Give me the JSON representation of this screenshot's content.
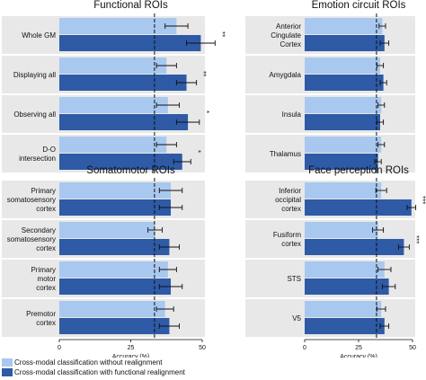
{
  "colors": {
    "without": "#a9c8ef",
    "with": "#2e5aa6",
    "panel_bg": "#e8e8e8"
  },
  "legend": [
    {
      "label": "Cross-modal classification without realignment",
      "color": "#a9c8ef"
    },
    {
      "label": "Cross-modal classification with functional realignment",
      "color": "#2e5aa6"
    }
  ],
  "chart_data": [
    {
      "type": "bar",
      "orientation": "horizontal",
      "title": "Functional ROIs",
      "xlabel": "Accuracy (%)",
      "xlim": [
        0,
        50
      ],
      "xticks": [
        0,
        25,
        50
      ],
      "chance": 33.3,
      "series": [
        {
          "name": "Cross-modal classification without realignment",
          "values": [
            41,
            37.5,
            38,
            37.5
          ],
          "errors": [
            4,
            3.5,
            4,
            3.5
          ]
        },
        {
          "name": "Cross-modal classification with functional realignment",
          "values": [
            49.5,
            44.5,
            45,
            43
          ],
          "errors": [
            5,
            3.5,
            4,
            3
          ]
        }
      ],
      "categories": [
        {
          "label": [
            "Whole GM"
          ],
          "sig": "**"
        },
        {
          "label": [
            "Displaying all"
          ],
          "sig": "**"
        },
        {
          "label": [
            "Observing all"
          ],
          "sig": "*"
        },
        {
          "label": [
            "D-O",
            "intersection"
          ],
          "sig": "*"
        }
      ]
    },
    {
      "type": "bar",
      "orientation": "horizontal",
      "title": "Emotion circuit ROIs",
      "xlabel": "Accuracy (%)",
      "xlim": [
        0,
        50
      ],
      "xticks": [
        0,
        25,
        50
      ],
      "chance": 33.3,
      "series": [
        {
          "name": "Cross-modal classification without realignment",
          "values": [
            36,
            35,
            35.5,
            35.5
          ],
          "errors": [
            1.5,
            1.5,
            1.5,
            1.5
          ]
        },
        {
          "name": "Cross-modal classification with functional realignment",
          "values": [
            37,
            36.5,
            35,
            34
          ],
          "errors": [
            2,
            1.5,
            1.5,
            1.5
          ]
        }
      ],
      "categories": [
        {
          "label": [
            "Anterior",
            "Cingulate",
            "Cortex"
          ],
          "sig": ""
        },
        {
          "label": [
            "Amygdala"
          ],
          "sig": ""
        },
        {
          "label": [
            "Insula"
          ],
          "sig": ""
        },
        {
          "label": [
            "Thalamus"
          ],
          "sig": ""
        }
      ]
    },
    {
      "type": "bar",
      "orientation": "horizontal",
      "title": "Somatomotor ROIs",
      "xlabel": "Accuracy (%)",
      "xlim": [
        0,
        50
      ],
      "xticks": [
        0,
        25,
        50
      ],
      "chance": 33.3,
      "series": [
        {
          "name": "Cross-modal classification without realignment",
          "values": [
            39,
            33.5,
            38,
            37
          ],
          "errors": [
            4,
            2.5,
            3,
            3
          ]
        },
        {
          "name": "Cross-modal classification with functional realignment",
          "values": [
            39,
            38.5,
            39,
            38.5
          ],
          "errors": [
            4,
            3.5,
            4,
            3.5
          ]
        }
      ],
      "categories": [
        {
          "label": [
            "Primary",
            "somatosensory",
            "cortex"
          ],
          "sig": ""
        },
        {
          "label": [
            "Secondary",
            "somatosensory",
            "cortex"
          ],
          "sig": ""
        },
        {
          "label": [
            "Primary",
            "motor",
            "cortex"
          ],
          "sig": ""
        },
        {
          "label": [
            "Premotor",
            "cortex"
          ],
          "sig": ""
        }
      ]
    },
    {
      "type": "bar",
      "orientation": "horizontal",
      "title": "Face perception ROIs",
      "xlabel": "Accuracy (%)",
      "xlim": [
        0,
        50
      ],
      "xticks": [
        0,
        25,
        50
      ],
      "chance": 33.3,
      "series": [
        {
          "name": "Cross-modal classification without realignment",
          "values": [
            35.5,
            34,
            37,
            35.5
          ],
          "errors": [
            2.5,
            2.5,
            3,
            2
          ]
        },
        {
          "name": "Cross-modal classification with functional realignment",
          "values": [
            49.5,
            46,
            39,
            37
          ],
          "errors": [
            2,
            2.5,
            3,
            2
          ]
        }
      ],
      "categories": [
        {
          "label": [
            "Inferior",
            "occipital",
            "cortex"
          ],
          "sig": "***"
        },
        {
          "label": [
            "Fusiform",
            "cortex"
          ],
          "sig": "***"
        },
        {
          "label": [
            "STS"
          ],
          "sig": ""
        },
        {
          "label": [
            "V5"
          ],
          "sig": ""
        }
      ]
    }
  ]
}
